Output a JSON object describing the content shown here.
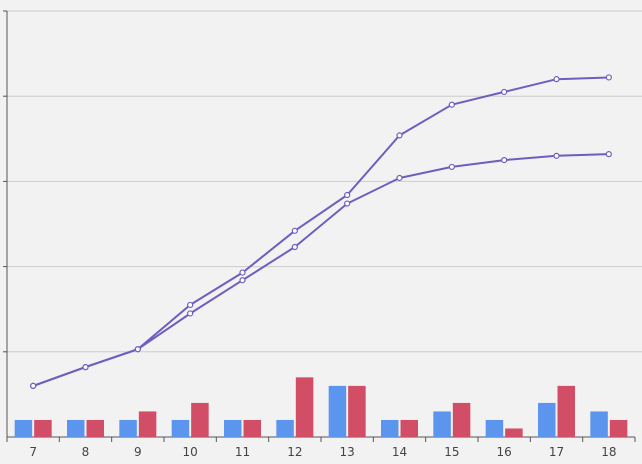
{
  "chart_data": {
    "type": "bar+line",
    "title": "",
    "xlabel": "",
    "ylabel": "",
    "categories": [
      "7",
      "8",
      "9",
      "10",
      "11",
      "12",
      "13",
      "14",
      "15",
      "16",
      "17",
      "18"
    ],
    "ylim": [
      0,
      5
    ],
    "grid": true,
    "bar_series": [
      {
        "color": "#5b95ee",
        "values": [
          0.2,
          0.2,
          0.2,
          0.2,
          0.2,
          0.2,
          0.6,
          0.2,
          0.3,
          0.2,
          0.4,
          0.3
        ]
      },
      {
        "color": "#d24d66",
        "values": [
          0.2,
          0.2,
          0.3,
          0.4,
          0.2,
          0.7,
          0.6,
          0.2,
          0.4,
          0.1,
          0.6,
          0.2
        ]
      }
    ],
    "line_series": [
      {
        "color": "#6c5fbf",
        "values": [
          0.6,
          0.82,
          1.03,
          1.55,
          1.93,
          2.42,
          2.84,
          3.54,
          3.9,
          4.05,
          4.2,
          4.22
        ]
      },
      {
        "color": "#6c5fbf",
        "values": [
          0.6,
          0.82,
          1.03,
          1.45,
          1.84,
          2.23,
          2.74,
          3.04,
          3.17,
          3.25,
          3.3,
          3.32
        ]
      }
    ]
  }
}
